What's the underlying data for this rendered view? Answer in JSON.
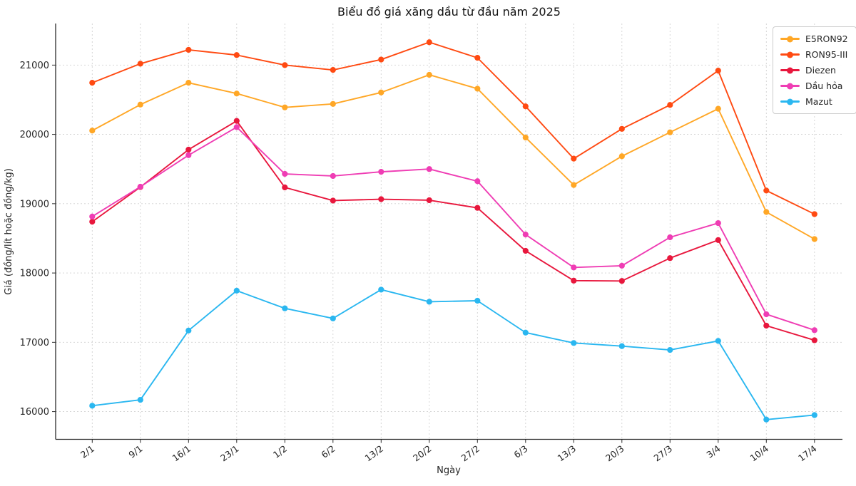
{
  "chart_data": {
    "type": "line",
    "title": "Biểu đồ giá xăng dầu từ đầu năm 2025",
    "xlabel": "Ngày",
    "ylabel": "Giá (đồng/lít hoặc đồng/kg)",
    "categories": [
      "2/1",
      "9/1",
      "16/1",
      "23/1",
      "1/2",
      "6/2",
      "13/2",
      "20/2",
      "27/2",
      "6/3",
      "13/3",
      "20/3",
      "27/3",
      "3/4",
      "10/4",
      "17/4"
    ],
    "y_ticks": [
      16000,
      17000,
      18000,
      19000,
      20000,
      21000
    ],
    "ylim": [
      15600,
      21600
    ],
    "grid": true,
    "legend_position": "upper right",
    "series": [
      {
        "name": "E5RON92",
        "color": "#ffa726",
        "values": [
          20055,
          20430,
          20745,
          20590,
          20390,
          20440,
          20605,
          20860,
          20660,
          19955,
          19270,
          19685,
          20030,
          20370,
          18880,
          18490
        ]
      },
      {
        "name": "RON95-III",
        "color": "#ff4a12",
        "values": [
          20745,
          21020,
          21220,
          21145,
          21000,
          20930,
          21080,
          21330,
          21105,
          20405,
          19650,
          20080,
          20425,
          20920,
          19190,
          18850
        ]
      },
      {
        "name": "Diezen",
        "color": "#e8173d",
        "values": [
          18740,
          19240,
          19780,
          20195,
          19235,
          19045,
          19065,
          19050,
          18940,
          18320,
          17890,
          17885,
          18215,
          18475,
          17240,
          17030
        ]
      },
      {
        "name": "Dầu hỏa",
        "color": "#ef3db4",
        "values": [
          18815,
          19245,
          19700,
          20105,
          19430,
          19400,
          19460,
          19500,
          19325,
          18555,
          18080,
          18105,
          18515,
          18720,
          17405,
          17175
        ]
      },
      {
        "name": "Mazut",
        "color": "#2ab7f0",
        "values": [
          16085,
          16170,
          17170,
          17745,
          17490,
          17345,
          17760,
          17585,
          17600,
          17140,
          16990,
          16945,
          16890,
          17020,
          15885,
          15950
        ]
      }
    ]
  }
}
